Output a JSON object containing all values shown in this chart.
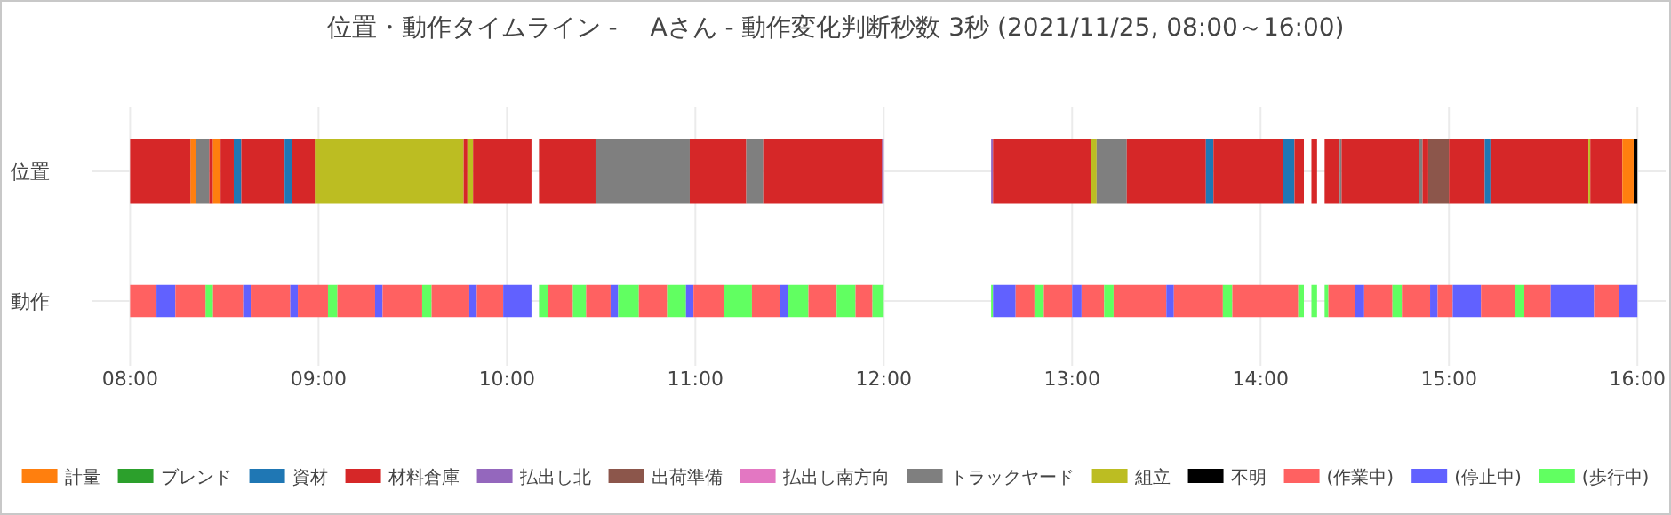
{
  "chart_data": {
    "type": "bar",
    "orientation": "horizontal",
    "title": "位置・動作タイムライン -　 Aさん - 動作変化判断秒数 3秒 (2021/11/25, 08:00～16:00)",
    "categories": [
      "位置",
      "動作"
    ],
    "xlim": [
      7.8,
      16.15
    ],
    "xticks": [
      {
        "value": 8,
        "label": "08:00"
      },
      {
        "value": 9,
        "label": "09:00"
      },
      {
        "value": 10,
        "label": "10:00"
      },
      {
        "value": 11,
        "label": "11:00"
      },
      {
        "value": 12,
        "label": "12:00"
      },
      {
        "value": 13,
        "label": "13:00"
      },
      {
        "value": 14,
        "label": "14:00"
      },
      {
        "value": 15,
        "label": "15:00"
      },
      {
        "value": 16,
        "label": "16:00"
      }
    ],
    "grid": true,
    "legend": "bottom",
    "series": [
      {
        "name": "計量",
        "color": "#ff7f0e",
        "base": [
          8.32,
          null
        ],
        "values": [
          0.03,
          null
        ]
      },
      {
        "name": "ブレンド",
        "color": "#2ca02c",
        "base": [
          null,
          null
        ],
        "values": [
          null,
          null
        ]
      },
      {
        "name": "資材",
        "color": "#1f77b4",
        "base": [
          8.55,
          null
        ],
        "values": [
          0.04,
          null
        ]
      },
      {
        "name": "材料倉庫",
        "color": "#d62728",
        "base": [
          8.0,
          null
        ],
        "values": [
          0.32,
          null
        ]
      },
      {
        "name": "払出し北",
        "color": "#9467bd",
        "base": [
          11.99,
          null
        ],
        "values": [
          0.01,
          null
        ]
      },
      {
        "name": "出荷準備",
        "color": "#8c564b",
        "base": [
          14.89,
          null
        ],
        "values": [
          0.11,
          null
        ]
      },
      {
        "name": "払出し南方向",
        "color": "#e377c2",
        "base": [
          null,
          null
        ],
        "values": [
          null,
          null
        ]
      },
      {
        "name": "トラックヤード",
        "color": "#7f7f7f",
        "base": [
          8.35,
          null
        ],
        "values": [
          0.07,
          null
        ]
      },
      {
        "name": "組立",
        "color": "#bcbd22",
        "base": [
          8.98,
          null
        ],
        "values": [
          0.79,
          null
        ]
      },
      {
        "name": "不明",
        "color": "#000000",
        "base": [
          15.98,
          null
        ],
        "values": [
          0.02,
          null
        ]
      },
      {
        "name": "(作業中)",
        "color": "#ff6161",
        "base": [
          null,
          8.0
        ],
        "values": [
          null,
          0.14
        ]
      },
      {
        "name": "(停止中)",
        "color": "#6161ff",
        "base": [
          null,
          8.14
        ],
        "values": [
          null,
          0.1
        ]
      },
      {
        "name": "(歩行中)",
        "color": "#61ff61",
        "base": [
          null,
          8.4
        ],
        "values": [
          null,
          0.04
        ]
      },
      {
        "color": "#d62728",
        "base": [
          8.42,
          null
        ],
        "values": [
          0.02,
          null
        ]
      },
      {
        "color": "#ff7f0e",
        "base": [
          8.44,
          null
        ],
        "values": [
          0.04,
          null
        ]
      },
      {
        "color": "#d62728",
        "base": [
          8.48,
          null
        ],
        "values": [
          0.07,
          null
        ]
      },
      {
        "color": "#d62728",
        "base": [
          8.59,
          null
        ],
        "values": [
          0.23,
          null
        ]
      },
      {
        "color": "#1f77b4",
        "base": [
          8.82,
          null
        ],
        "values": [
          0.04,
          null
        ]
      },
      {
        "color": "#d62728",
        "base": [
          8.86,
          null
        ],
        "values": [
          0.12,
          null
        ]
      },
      {
        "color": "#d62728",
        "base": [
          9.77,
          null
        ],
        "values": [
          0.02,
          null
        ]
      },
      {
        "color": "#bcbd22",
        "base": [
          9.79,
          null
        ],
        "values": [
          0.03,
          null
        ]
      },
      {
        "color": "#d62728",
        "base": [
          9.82,
          null
        ],
        "values": [
          0.31,
          null
        ]
      },
      {
        "color": "#d62728",
        "base": [
          10.17,
          null
        ],
        "values": [
          0.3,
          null
        ]
      },
      {
        "color": "#7f7f7f",
        "base": [
          10.47,
          null
        ],
        "values": [
          0.5,
          null
        ]
      },
      {
        "color": "#d62728",
        "base": [
          10.97,
          null
        ],
        "values": [
          0.3,
          null
        ]
      },
      {
        "color": "#7f7f7f",
        "base": [
          11.27,
          null
        ],
        "values": [
          0.09,
          null
        ]
      },
      {
        "color": "#d62728",
        "base": [
          11.36,
          null
        ],
        "values": [
          0.63,
          null
        ]
      },
      {
        "color": "#9467bd",
        "base": [
          12.57,
          null
        ],
        "values": [
          0.01,
          null
        ]
      },
      {
        "color": "#d62728",
        "base": [
          12.58,
          null
        ],
        "values": [
          0.52,
          null
        ]
      },
      {
        "color": "#bcbd22",
        "base": [
          13.1,
          null
        ],
        "values": [
          0.03,
          null
        ]
      },
      {
        "color": "#7f7f7f",
        "base": [
          13.13,
          null
        ],
        "values": [
          0.16,
          null
        ]
      },
      {
        "color": "#d62728",
        "base": [
          13.29,
          null
        ],
        "values": [
          0.42,
          null
        ]
      },
      {
        "color": "#1f77b4",
        "base": [
          13.71,
          null
        ],
        "values": [
          0.04,
          null
        ]
      },
      {
        "color": "#d62728",
        "base": [
          13.75,
          null
        ],
        "values": [
          0.37,
          null
        ]
      },
      {
        "color": "#1f77b4",
        "base": [
          14.12,
          null
        ],
        "values": [
          0.06,
          null
        ]
      },
      {
        "color": "#d62728",
        "base": [
          14.18,
          null
        ],
        "values": [
          0.05,
          null
        ]
      },
      {
        "color": "#d62728",
        "base": [
          14.27,
          null
        ],
        "values": [
          0.03,
          null
        ]
      },
      {
        "color": "#d62728",
        "base": [
          14.34,
          null
        ],
        "values": [
          0.08,
          null
        ]
      },
      {
        "color": "#7f7f7f",
        "base": [
          14.42,
          null
        ],
        "values": [
          0.01,
          null
        ]
      },
      {
        "color": "#d62728",
        "base": [
          14.43,
          null
        ],
        "values": [
          0.41,
          null
        ]
      },
      {
        "color": "#7f7f7f",
        "base": [
          14.84,
          null
        ],
        "values": [
          0.02,
          null
        ]
      },
      {
        "color": "#d62728",
        "base": [
          14.86,
          null
        ],
        "values": [
          0.03,
          null
        ]
      },
      {
        "color": "#d62728",
        "base": [
          15.0,
          null
        ],
        "values": [
          0.19,
          null
        ]
      },
      {
        "color": "#1f77b4",
        "base": [
          15.19,
          null
        ],
        "values": [
          0.03,
          null
        ]
      },
      {
        "color": "#d62728",
        "base": [
          15.22,
          null
        ],
        "values": [
          0.52,
          null
        ]
      },
      {
        "color": "#bcbd22",
        "base": [
          15.74,
          null
        ],
        "values": [
          0.01,
          null
        ]
      },
      {
        "color": "#d62728",
        "base": [
          15.75,
          null
        ],
        "values": [
          0.17,
          null
        ]
      },
      {
        "color": "#ff7f0e",
        "base": [
          15.92,
          null
        ],
        "values": [
          0.06,
          null
        ]
      },
      {
        "color": "#ff6161",
        "base": [
          null,
          8.24
        ],
        "values": [
          null,
          0.16
        ]
      },
      {
        "color": "#ff6161",
        "base": [
          null,
          8.44
        ],
        "values": [
          null,
          0.16
        ]
      },
      {
        "color": "#6161ff",
        "base": [
          null,
          8.6
        ],
        "values": [
          null,
          0.04
        ]
      },
      {
        "color": "#ff6161",
        "base": [
          null,
          8.64
        ],
        "values": [
          null,
          0.21
        ]
      },
      {
        "color": "#6161ff",
        "base": [
          null,
          8.85
        ],
        "values": [
          null,
          0.04
        ]
      },
      {
        "color": "#ff6161",
        "base": [
          null,
          8.89
        ],
        "values": [
          null,
          0.16
        ]
      },
      {
        "color": "#61ff61",
        "base": [
          null,
          9.05
        ],
        "values": [
          null,
          0.05
        ]
      },
      {
        "color": "#ff6161",
        "base": [
          null,
          9.1
        ],
        "values": [
          null,
          0.2
        ]
      },
      {
        "color": "#6161ff",
        "base": [
          null,
          9.3
        ],
        "values": [
          null,
          0.04
        ]
      },
      {
        "color": "#ff6161",
        "base": [
          null,
          9.34
        ],
        "values": [
          null,
          0.21
        ]
      },
      {
        "color": "#61ff61",
        "base": [
          null,
          9.55
        ],
        "values": [
          null,
          0.05
        ]
      },
      {
        "color": "#ff6161",
        "base": [
          null,
          9.6
        ],
        "values": [
          null,
          0.2
        ]
      },
      {
        "color": "#6161ff",
        "base": [
          null,
          9.8
        ],
        "values": [
          null,
          0.04
        ]
      },
      {
        "color": "#ff6161",
        "base": [
          null,
          9.84
        ],
        "values": [
          null,
          0.14
        ]
      },
      {
        "color": "#6161ff",
        "base": [
          null,
          9.98
        ],
        "values": [
          null,
          0.15
        ]
      },
      {
        "color": "#61ff61",
        "base": [
          null,
          10.17
        ],
        "values": [
          null,
          0.05
        ]
      },
      {
        "color": "#ff6161",
        "base": [
          null,
          10.22
        ],
        "values": [
          null,
          0.13
        ]
      },
      {
        "color": "#61ff61",
        "base": [
          null,
          10.35
        ],
        "values": [
          null,
          0.07
        ]
      },
      {
        "color": "#ff6161",
        "base": [
          null,
          10.42
        ],
        "values": [
          null,
          0.13
        ]
      },
      {
        "color": "#6161ff",
        "base": [
          null,
          10.55
        ],
        "values": [
          null,
          0.04
        ]
      },
      {
        "color": "#61ff61",
        "base": [
          null,
          10.59
        ],
        "values": [
          null,
          0.11
        ]
      },
      {
        "color": "#ff6161",
        "base": [
          null,
          10.7
        ],
        "values": [
          null,
          0.15
        ]
      },
      {
        "color": "#61ff61",
        "base": [
          null,
          10.85
        ],
        "values": [
          null,
          0.1
        ]
      },
      {
        "color": "#6161ff",
        "base": [
          null,
          10.95
        ],
        "values": [
          null,
          0.04
        ]
      },
      {
        "color": "#ff6161",
        "base": [
          null,
          10.99
        ],
        "values": [
          null,
          0.16
        ]
      },
      {
        "color": "#61ff61",
        "base": [
          null,
          11.15
        ],
        "values": [
          null,
          0.15
        ]
      },
      {
        "color": "#ff6161",
        "base": [
          null,
          11.3
        ],
        "values": [
          null,
          0.15
        ]
      },
      {
        "color": "#6161ff",
        "base": [
          null,
          11.45
        ],
        "values": [
          null,
          0.04
        ]
      },
      {
        "color": "#61ff61",
        "base": [
          null,
          11.49
        ],
        "values": [
          null,
          0.11
        ]
      },
      {
        "color": "#ff6161",
        "base": [
          null,
          11.6
        ],
        "values": [
          null,
          0.15
        ]
      },
      {
        "color": "#61ff61",
        "base": [
          null,
          11.75
        ],
        "values": [
          null,
          0.1
        ]
      },
      {
        "color": "#ff6161",
        "base": [
          null,
          11.85
        ],
        "values": [
          null,
          0.09
        ]
      },
      {
        "color": "#61ff61",
        "base": [
          null,
          11.94
        ],
        "values": [
          null,
          0.06
        ]
      },
      {
        "color": "#61ff61",
        "base": [
          null,
          12.57
        ],
        "values": [
          null,
          0.01
        ]
      },
      {
        "color": "#6161ff",
        "base": [
          null,
          12.58
        ],
        "values": [
          null,
          0.12
        ]
      },
      {
        "color": "#ff6161",
        "base": [
          null,
          12.7
        ],
        "values": [
          null,
          0.1
        ]
      },
      {
        "color": "#61ff61",
        "base": [
          null,
          12.8
        ],
        "values": [
          null,
          0.05
        ]
      },
      {
        "color": "#ff6161",
        "base": [
          null,
          12.85
        ],
        "values": [
          null,
          0.15
        ]
      },
      {
        "color": "#6161ff",
        "base": [
          null,
          13.0
        ],
        "values": [
          null,
          0.05
        ]
      },
      {
        "color": "#ff6161",
        "base": [
          null,
          13.05
        ],
        "values": [
          null,
          0.12
        ]
      },
      {
        "color": "#61ff61",
        "base": [
          null,
          13.17
        ],
        "values": [
          null,
          0.05
        ]
      },
      {
        "color": "#ff6161",
        "base": [
          null,
          13.22
        ],
        "values": [
          null,
          0.28
        ]
      },
      {
        "color": "#6161ff",
        "base": [
          null,
          13.5
        ],
        "values": [
          null,
          0.04
        ]
      },
      {
        "color": "#ff6161",
        "base": [
          null,
          13.54
        ],
        "values": [
          null,
          0.26
        ]
      },
      {
        "color": "#61ff61",
        "base": [
          null,
          13.8
        ],
        "values": [
          null,
          0.05
        ]
      },
      {
        "color": "#ff6161",
        "base": [
          null,
          13.85
        ],
        "values": [
          null,
          0.35
        ]
      },
      {
        "color": "#61ff61",
        "base": [
          null,
          14.2
        ],
        "values": [
          null,
          0.03
        ]
      },
      {
        "color": "#61ff61",
        "base": [
          null,
          14.27
        ],
        "values": [
          null,
          0.03
        ]
      },
      {
        "color": "#61ff61",
        "base": [
          null,
          14.34
        ],
        "values": [
          null,
          0.02
        ]
      },
      {
        "color": "#ff6161",
        "base": [
          null,
          14.36
        ],
        "values": [
          null,
          0.14
        ]
      },
      {
        "color": "#6161ff",
        "base": [
          null,
          14.5
        ],
        "values": [
          null,
          0.05
        ]
      },
      {
        "color": "#ff6161",
        "base": [
          null,
          14.55
        ],
        "values": [
          null,
          0.15
        ]
      },
      {
        "color": "#61ff61",
        "base": [
          null,
          14.7
        ],
        "values": [
          null,
          0.05
        ]
      },
      {
        "color": "#ff6161",
        "base": [
          null,
          14.75
        ],
        "values": [
          null,
          0.15
        ]
      },
      {
        "color": "#6161ff",
        "base": [
          null,
          14.9
        ],
        "values": [
          null,
          0.04
        ]
      },
      {
        "color": "#ff6161",
        "base": [
          null,
          14.94
        ],
        "values": [
          null,
          0.08
        ]
      },
      {
        "color": "#6161ff",
        "base": [
          null,
          15.02
        ],
        "values": [
          null,
          0.15
        ]
      },
      {
        "color": "#ff6161",
        "base": [
          null,
          15.17
        ],
        "values": [
          null,
          0.18
        ]
      },
      {
        "color": "#61ff61",
        "base": [
          null,
          15.35
        ],
        "values": [
          null,
          0.05
        ]
      },
      {
        "color": "#ff6161",
        "base": [
          null,
          15.4
        ],
        "values": [
          null,
          0.14
        ]
      },
      {
        "color": "#6161ff",
        "base": [
          null,
          15.54
        ],
        "values": [
          null,
          0.23
        ]
      },
      {
        "color": "#ff6161",
        "base": [
          null,
          15.77
        ],
        "values": [
          null,
          0.13
        ]
      },
      {
        "color": "#6161ff",
        "base": [
          null,
          15.9
        ],
        "values": [
          null,
          0.1
        ]
      }
    ]
  }
}
